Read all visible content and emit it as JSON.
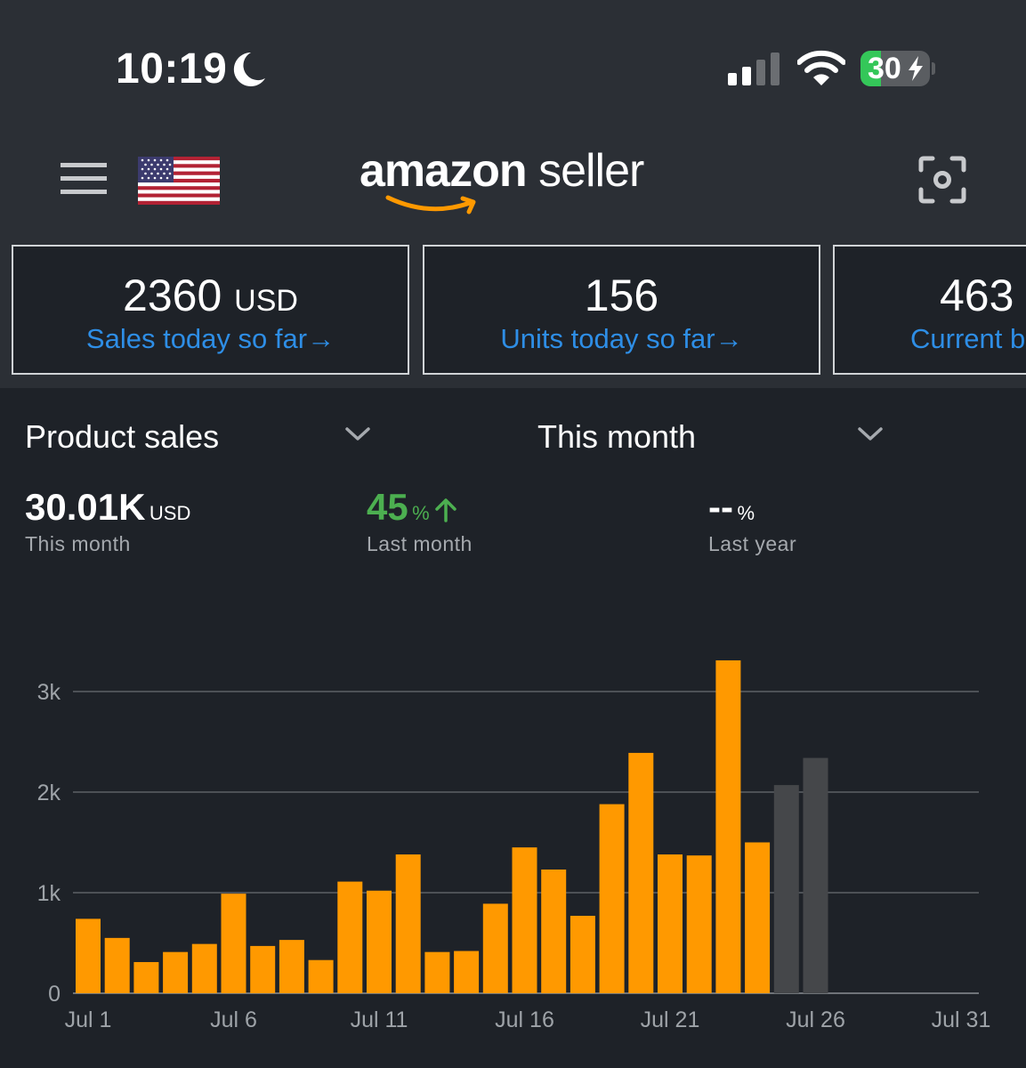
{
  "status_bar": {
    "time": "10:19",
    "battery": "30",
    "battery_level": 0.3
  },
  "header": {
    "brand": "amazon",
    "brand_suffix": "seller",
    "flag": "us-flag-icon"
  },
  "cards": [
    {
      "value": "2360",
      "unit": "USD",
      "label": "Sales today so far"
    },
    {
      "value": "156",
      "unit": "",
      "label": "Units today so far"
    },
    {
      "value": "463",
      "unit": "",
      "label": "Current b"
    }
  ],
  "selectors": {
    "metric": "Product sales",
    "period": "This month"
  },
  "stats": {
    "total": {
      "value": "30.01K",
      "unit": "USD",
      "label": "This month"
    },
    "vs_last_month": {
      "value": "45",
      "unit": "%",
      "label": "Last month"
    },
    "vs_last_year": {
      "value": "--",
      "unit": "%",
      "label": "Last year"
    }
  },
  "colors": {
    "accent": "#2e8ee6",
    "bar": "#ff9900",
    "projected_bar": "#45474a",
    "positive": "#4caf50",
    "background": "#1e2228"
  },
  "chart_data": {
    "type": "bar",
    "y_ticks": [
      "0",
      "1k",
      "2k",
      "3k"
    ],
    "x_ticks": [
      "Jul 1",
      "Jul 6",
      "Jul 11",
      "Jul 16",
      "Jul 21",
      "Jul 26",
      "Jul 31"
    ],
    "x": [
      1,
      2,
      3,
      4,
      5,
      6,
      7,
      8,
      9,
      10,
      11,
      12,
      13,
      14,
      15,
      16,
      17,
      18,
      19,
      20,
      21,
      22,
      23,
      24,
      25,
      26
    ],
    "values": [
      740,
      550,
      310,
      410,
      490,
      990,
      470,
      530,
      330,
      1110,
      1020,
      1380,
      410,
      420,
      890,
      1450,
      1230,
      770,
      1880,
      2390,
      1380,
      1370,
      3310,
      1500,
      2070,
      2340
    ],
    "projected": [
      false,
      false,
      false,
      false,
      false,
      false,
      false,
      false,
      false,
      false,
      false,
      false,
      false,
      false,
      false,
      false,
      false,
      false,
      false,
      false,
      false,
      false,
      false,
      false,
      true,
      true
    ],
    "ylim": [
      0,
      3400
    ],
    "xlim": [
      1,
      31
    ],
    "grid": true
  }
}
